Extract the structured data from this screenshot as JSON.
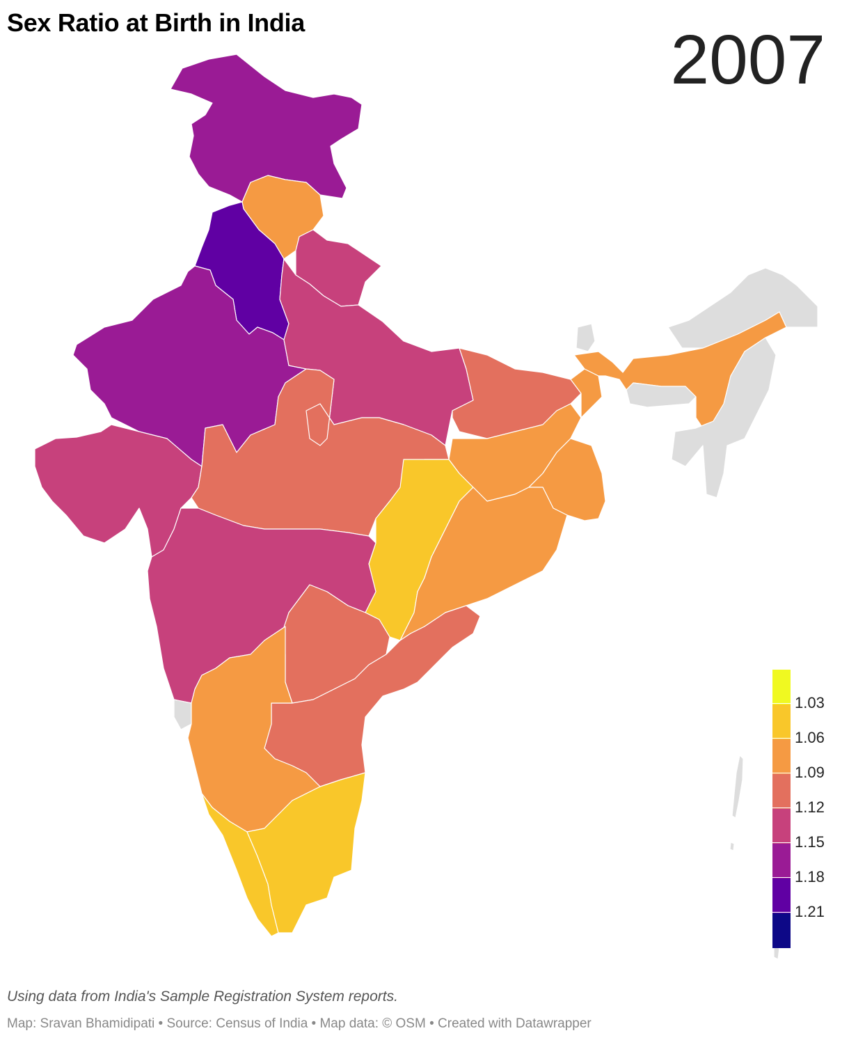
{
  "title": "Sex Ratio at Birth in India",
  "year": "2007",
  "note": "Using data from India's Sample Registration System reports.",
  "credits": "Map: Sravan Bhamidipati • Source: Census of India • Map data: © OSM • Created with Datawrapper",
  "legend": {
    "labels": [
      "1.03",
      "1.06",
      "1.09",
      "1.12",
      "1.15",
      "1.18",
      "1.21"
    ],
    "colors": [
      "#f0f921",
      "#f9c72a",
      "#f59a43",
      "#e3705e",
      "#c7417c",
      "#9a1b95",
      "#6000a3",
      "#0d0887"
    ]
  },
  "colors": {
    "no_data": "#dddddd"
  }
}
